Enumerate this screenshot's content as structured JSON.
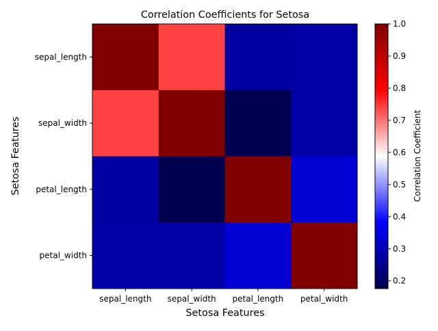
{
  "chart_data": {
    "type": "heatmap",
    "title": "Correlation Coefficients for Setosa",
    "xlabel": "Setosa Features",
    "ylabel": "Setosa Features",
    "x_categories": [
      "sepal_length",
      "sepal_width",
      "petal_length",
      "petal_width"
    ],
    "y_categories": [
      "sepal_length",
      "sepal_width",
      "petal_length",
      "petal_width"
    ],
    "values": [
      [
        1.0,
        0.74,
        0.27,
        0.28
      ],
      [
        0.74,
        1.0,
        0.18,
        0.28
      ],
      [
        0.27,
        0.18,
        1.0,
        0.33
      ],
      [
        0.28,
        0.28,
        0.33,
        1.0
      ]
    ],
    "colormap": "seismic",
    "colorbar": {
      "label": "Correlation Coefficient",
      "range": [
        0.176,
        1.0
      ],
      "ticks": [
        "0.2",
        "0.3",
        "0.4",
        "0.5",
        "0.6",
        "0.7",
        "0.8",
        "0.9",
        "1.0"
      ]
    },
    "grid": false
  }
}
